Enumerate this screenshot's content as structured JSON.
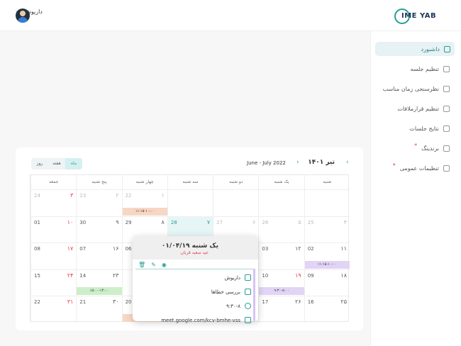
{
  "header": {
    "user_name": "داریوش",
    "logo_text": "IME YAB"
  },
  "sidebar": {
    "items": [
      {
        "label": "داشبورد",
        "icon": "grid-icon",
        "active": true,
        "star": false
      },
      {
        "label": "تنظیم جلسه",
        "icon": "calendar-check-icon",
        "active": false,
        "star": false
      },
      {
        "label": "نظرسنجی زمان مناسب",
        "icon": "clipboard-icon",
        "active": false,
        "star": false
      },
      {
        "label": "تنظیم قرارملاقات",
        "icon": "users-icon",
        "active": false,
        "star": false
      },
      {
        "label": "نتایج جلسات",
        "icon": "document-icon",
        "active": false,
        "star": false
      },
      {
        "label": "برندینگ",
        "icon": "building-icon",
        "active": false,
        "star": true
      },
      {
        "label": "تنظیمات عمومی",
        "icon": "gear-icon",
        "active": false,
        "star": true
      }
    ]
  },
  "calendar": {
    "title": "تیر ۱۴۰۱",
    "range": "June - July 2022",
    "views": [
      "روز",
      "هفته",
      "ماه"
    ],
    "active_view": "ماه",
    "days_of_week": [
      "جمعه",
      "پنج شنبه",
      "چهار شنبه",
      "سه شنبه",
      "دو شنبه",
      "یک شنبه",
      "شنبه"
    ],
    "weeks": [
      [
        {
          "g": "24",
          "p": "۳",
          "muted": true,
          "red": true
        },
        {
          "g": "23",
          "p": "۲",
          "muted": true
        },
        {
          "g": "22",
          "p": "۱",
          "muted": true
        },
        {
          "g": "",
          "p": ""
        },
        {
          "g": "",
          "p": ""
        },
        {
          "g": "",
          "p": ""
        },
        {
          "g": "",
          "p": ""
        }
      ],
      [
        {
          "g": "01",
          "p": "۱۰",
          "red": true
        },
        {
          "g": "30",
          "p": "۹"
        },
        {
          "g": "29",
          "p": "۸"
        },
        {
          "g": "28",
          "p": "۷",
          "today": true
        },
        {
          "g": "27",
          "p": "۶",
          "muted": true
        },
        {
          "g": "26",
          "p": "۵",
          "muted": true
        },
        {
          "g": "25",
          "p": "۴",
          "muted": true
        }
      ],
      [
        {
          "g": "08",
          "p": "۱۷",
          "red": true
        },
        {
          "g": "07",
          "p": "۱۶"
        },
        {
          "g": "06",
          "p": ""
        },
        {
          "g": "",
          "p": ""
        },
        {
          "g": "",
          "p": ""
        },
        {
          "g": "03",
          "p": "۱۲"
        },
        {
          "g": "02",
          "p": "۱۱"
        }
      ],
      [
        {
          "g": "15",
          "p": "۲۴",
          "red": true
        },
        {
          "g": "14",
          "p": "۲۳"
        },
        {
          "g": "",
          "p": ""
        },
        {
          "g": "",
          "p": ""
        },
        {
          "g": "",
          "p": ""
        },
        {
          "g": "10",
          "p": "۱۹",
          "red": true
        },
        {
          "g": "09",
          "p": "۱۸"
        }
      ],
      [
        {
          "g": "22",
          "p": "۳۱",
          "red": true
        },
        {
          "g": "21",
          "p": "۳۰"
        },
        {
          "g": "20",
          "p": ""
        },
        {
          "g": "",
          "p": ""
        },
        {
          "g": "",
          "p": ""
        },
        {
          "g": "17",
          "p": "۲۶"
        },
        {
          "g": "16",
          "p": "۲۵"
        }
      ]
    ],
    "events": [
      {
        "text": "۱۱:۱۵-۱۰:۰۰",
        "week": 0,
        "col": 2,
        "color": "#f7d7c4"
      },
      {
        "text": "۱۱:۱۵-۱۰:۰۰",
        "week": 2,
        "col": 6,
        "color": "#e2d4f5"
      },
      {
        "text": "۱۵:۰۰-۱۴:۰۰",
        "week": 3,
        "col": 1,
        "color": "#cdeec9"
      },
      {
        "text": "۹:۳۰-۸:۰۰",
        "week": 3,
        "col": 5,
        "color": "#e2d4f5"
      },
      {
        "text": "",
        "week": 4,
        "col": 2,
        "color": "#f7d7c4"
      }
    ]
  },
  "popup": {
    "title": "یک شنبه ۰۱/۰۴/۱۹",
    "subtitle": "عید سعید قربان",
    "rows": [
      {
        "icon": "users-icon",
        "text": "داریوش"
      },
      {
        "icon": "slides-icon",
        "text": "بررسی خطاها"
      },
      {
        "icon": "clock-icon",
        "text": "۹:۳۰-۸"
      },
      {
        "icon": "video-icon",
        "text": "meet.google.com/kcv-bmhe-vss"
      }
    ]
  }
}
